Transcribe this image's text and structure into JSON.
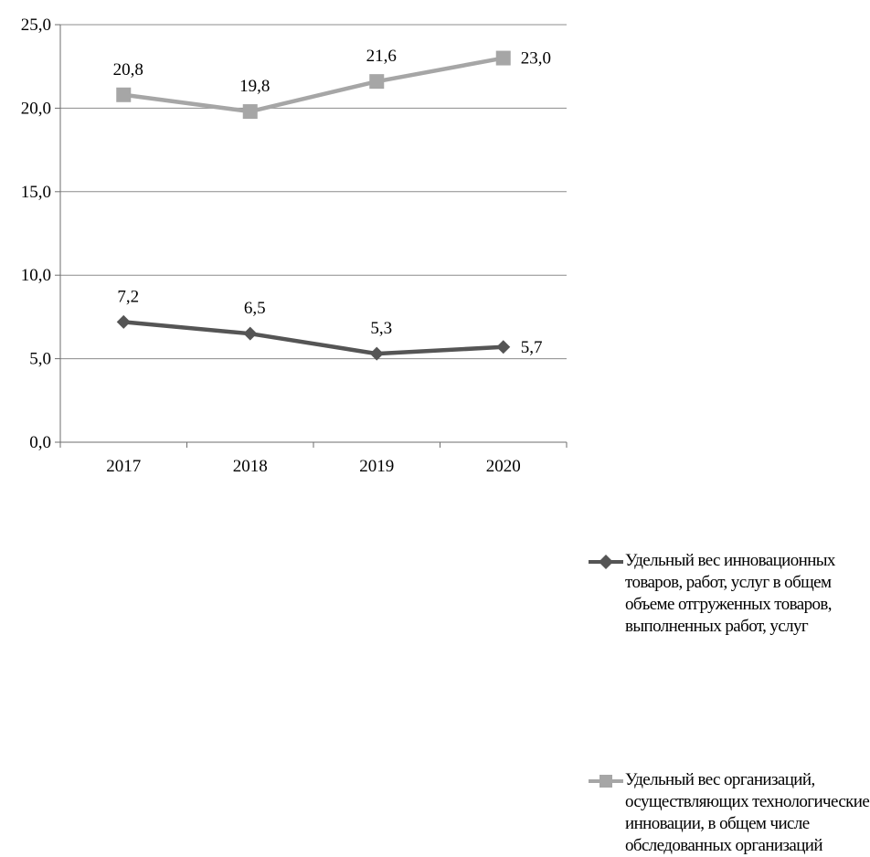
{
  "chart_data": {
    "type": "line",
    "categories": [
      "2017",
      "2018",
      "2019",
      "2020"
    ],
    "ylim": [
      0,
      25
    ],
    "yticks": [
      "0,0",
      "5,0",
      "10,0",
      "15,0",
      "20,0",
      "25,0"
    ],
    "grid": true,
    "legend_position": "right",
    "series": [
      {
        "name": "Удельный вес инновационных товаров, работ, услуг в общем объеме отгруженных товаров, выполненных работ, услуг",
        "values": [
          7.2,
          6.5,
          5.3,
          5.7
        ],
        "labels": [
          "7,2",
          "6,5",
          "5,3",
          "5,7"
        ],
        "color": "#555555",
        "marker": "diamond"
      },
      {
        "name": "Удельный вес организаций, осуществляющих технологические инновации, в общем числе обследованных организаций",
        "values": [
          20.8,
          19.8,
          21.6,
          23.0
        ],
        "labels": [
          "20,8",
          "19,8",
          "21,6",
          "23,0"
        ],
        "color": "#a6a6a6",
        "marker": "square"
      }
    ]
  },
  "legend": {
    "items": [
      {
        "label": "Удельный вес инновационных товаров, работ, услуг в общем объеме отгруженных товаров, выполненных работ, услуг",
        "color": "#555555",
        "marker": "diamond"
      },
      {
        "label": "Удельный вес организаций, осуществляющих технологические инновации, в общем числе обследованных организаций",
        "color": "#a6a6a6",
        "marker": "square"
      }
    ]
  }
}
